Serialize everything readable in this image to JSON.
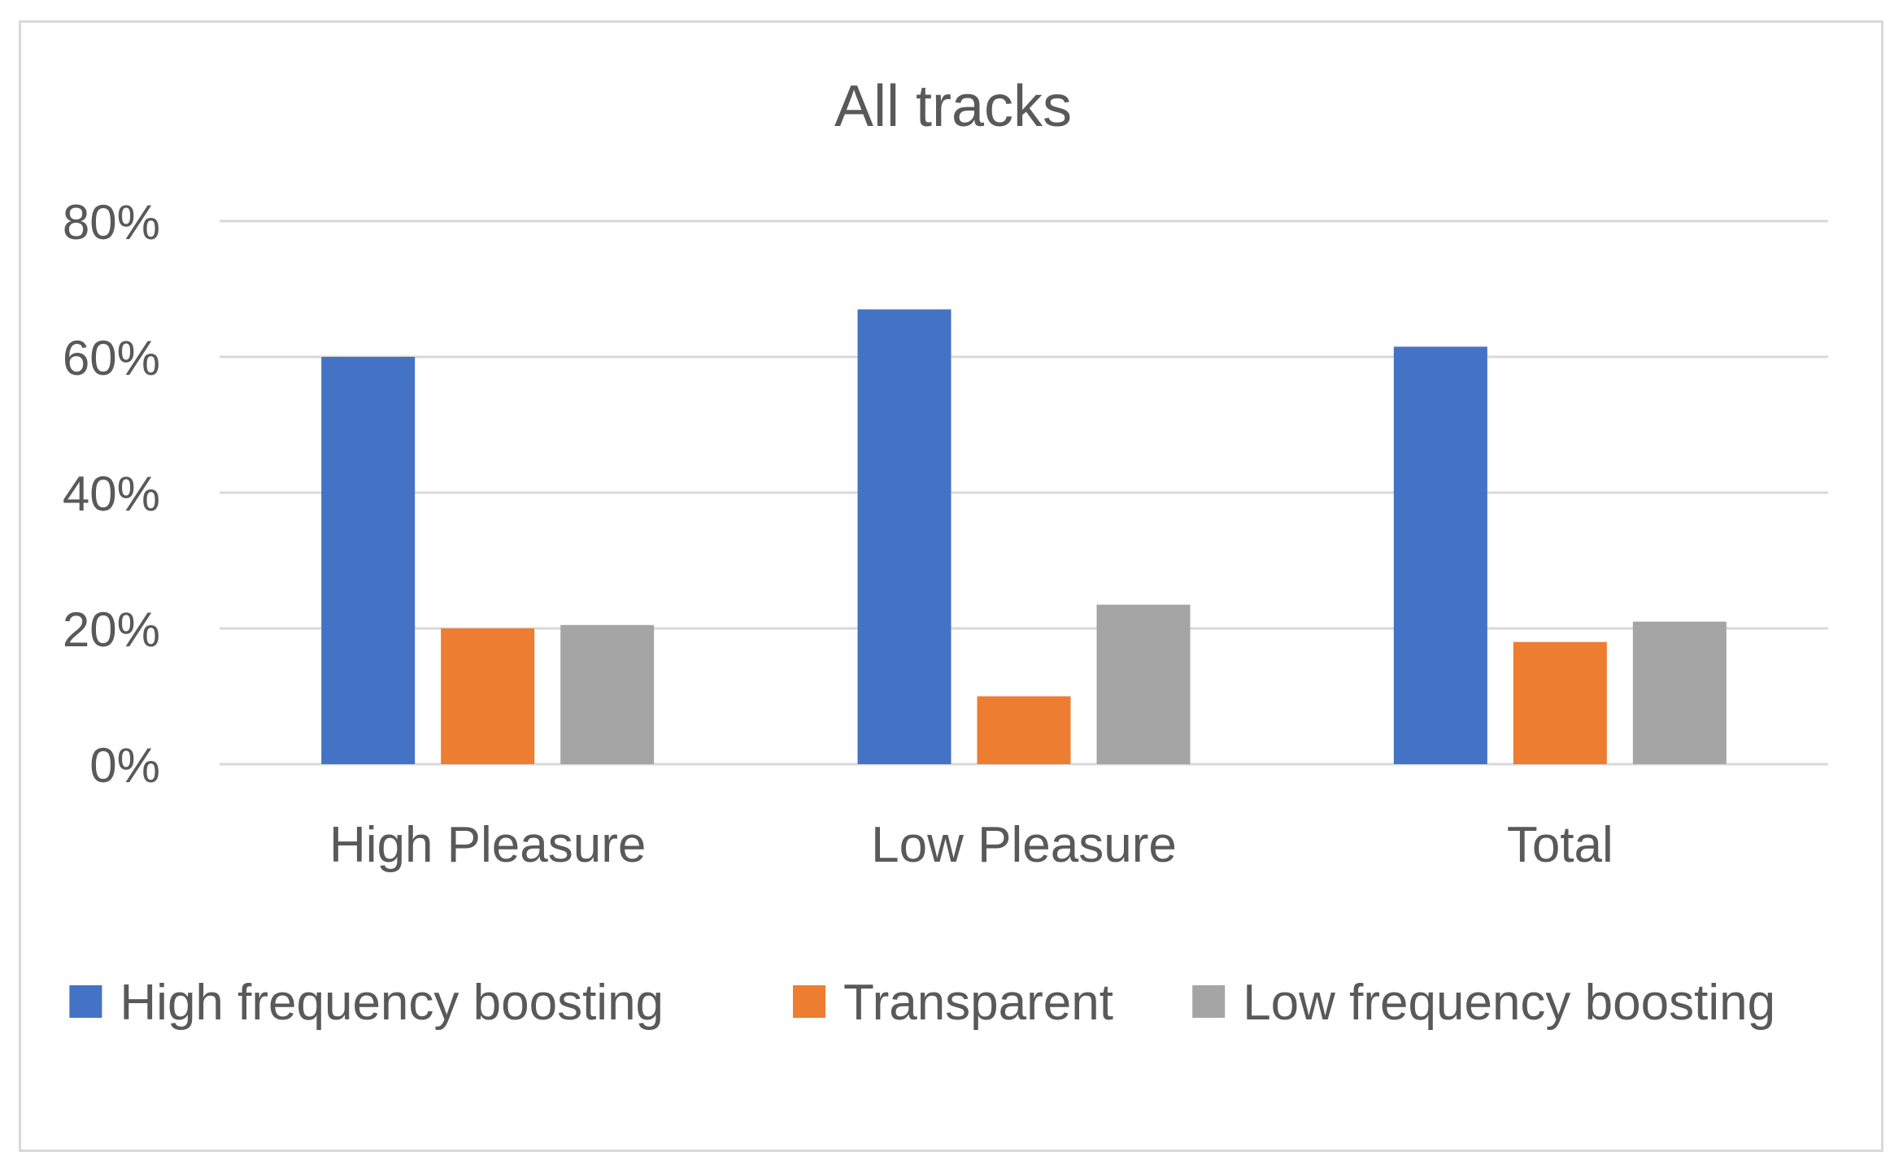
{
  "chart_data": {
    "type": "bar",
    "title": "All tracks",
    "categories": [
      "High Pleasure",
      "Low Pleasure",
      "Total"
    ],
    "series": [
      {
        "name": "High frequency boosting",
        "color": "#4472c4",
        "values": [
          60,
          67,
          61.5
        ]
      },
      {
        "name": "Transparent",
        "color": "#ed7d31",
        "values": [
          20,
          10,
          18
        ]
      },
      {
        "name": "Low frequency boosting",
        "color": "#a5a5a5",
        "values": [
          20.5,
          23.5,
          21
        ]
      }
    ],
    "ylim": [
      0,
      80
    ],
    "yticks": [
      0,
      20,
      40,
      60,
      80
    ],
    "ytick_labels": [
      "0%",
      "20%",
      "40%",
      "60%",
      "80%"
    ],
    "xlabel": "",
    "ylabel": "",
    "grid": true,
    "legend_position": "bottom",
    "gridline_color": "#d9d9d9",
    "text_color": "#595959"
  }
}
